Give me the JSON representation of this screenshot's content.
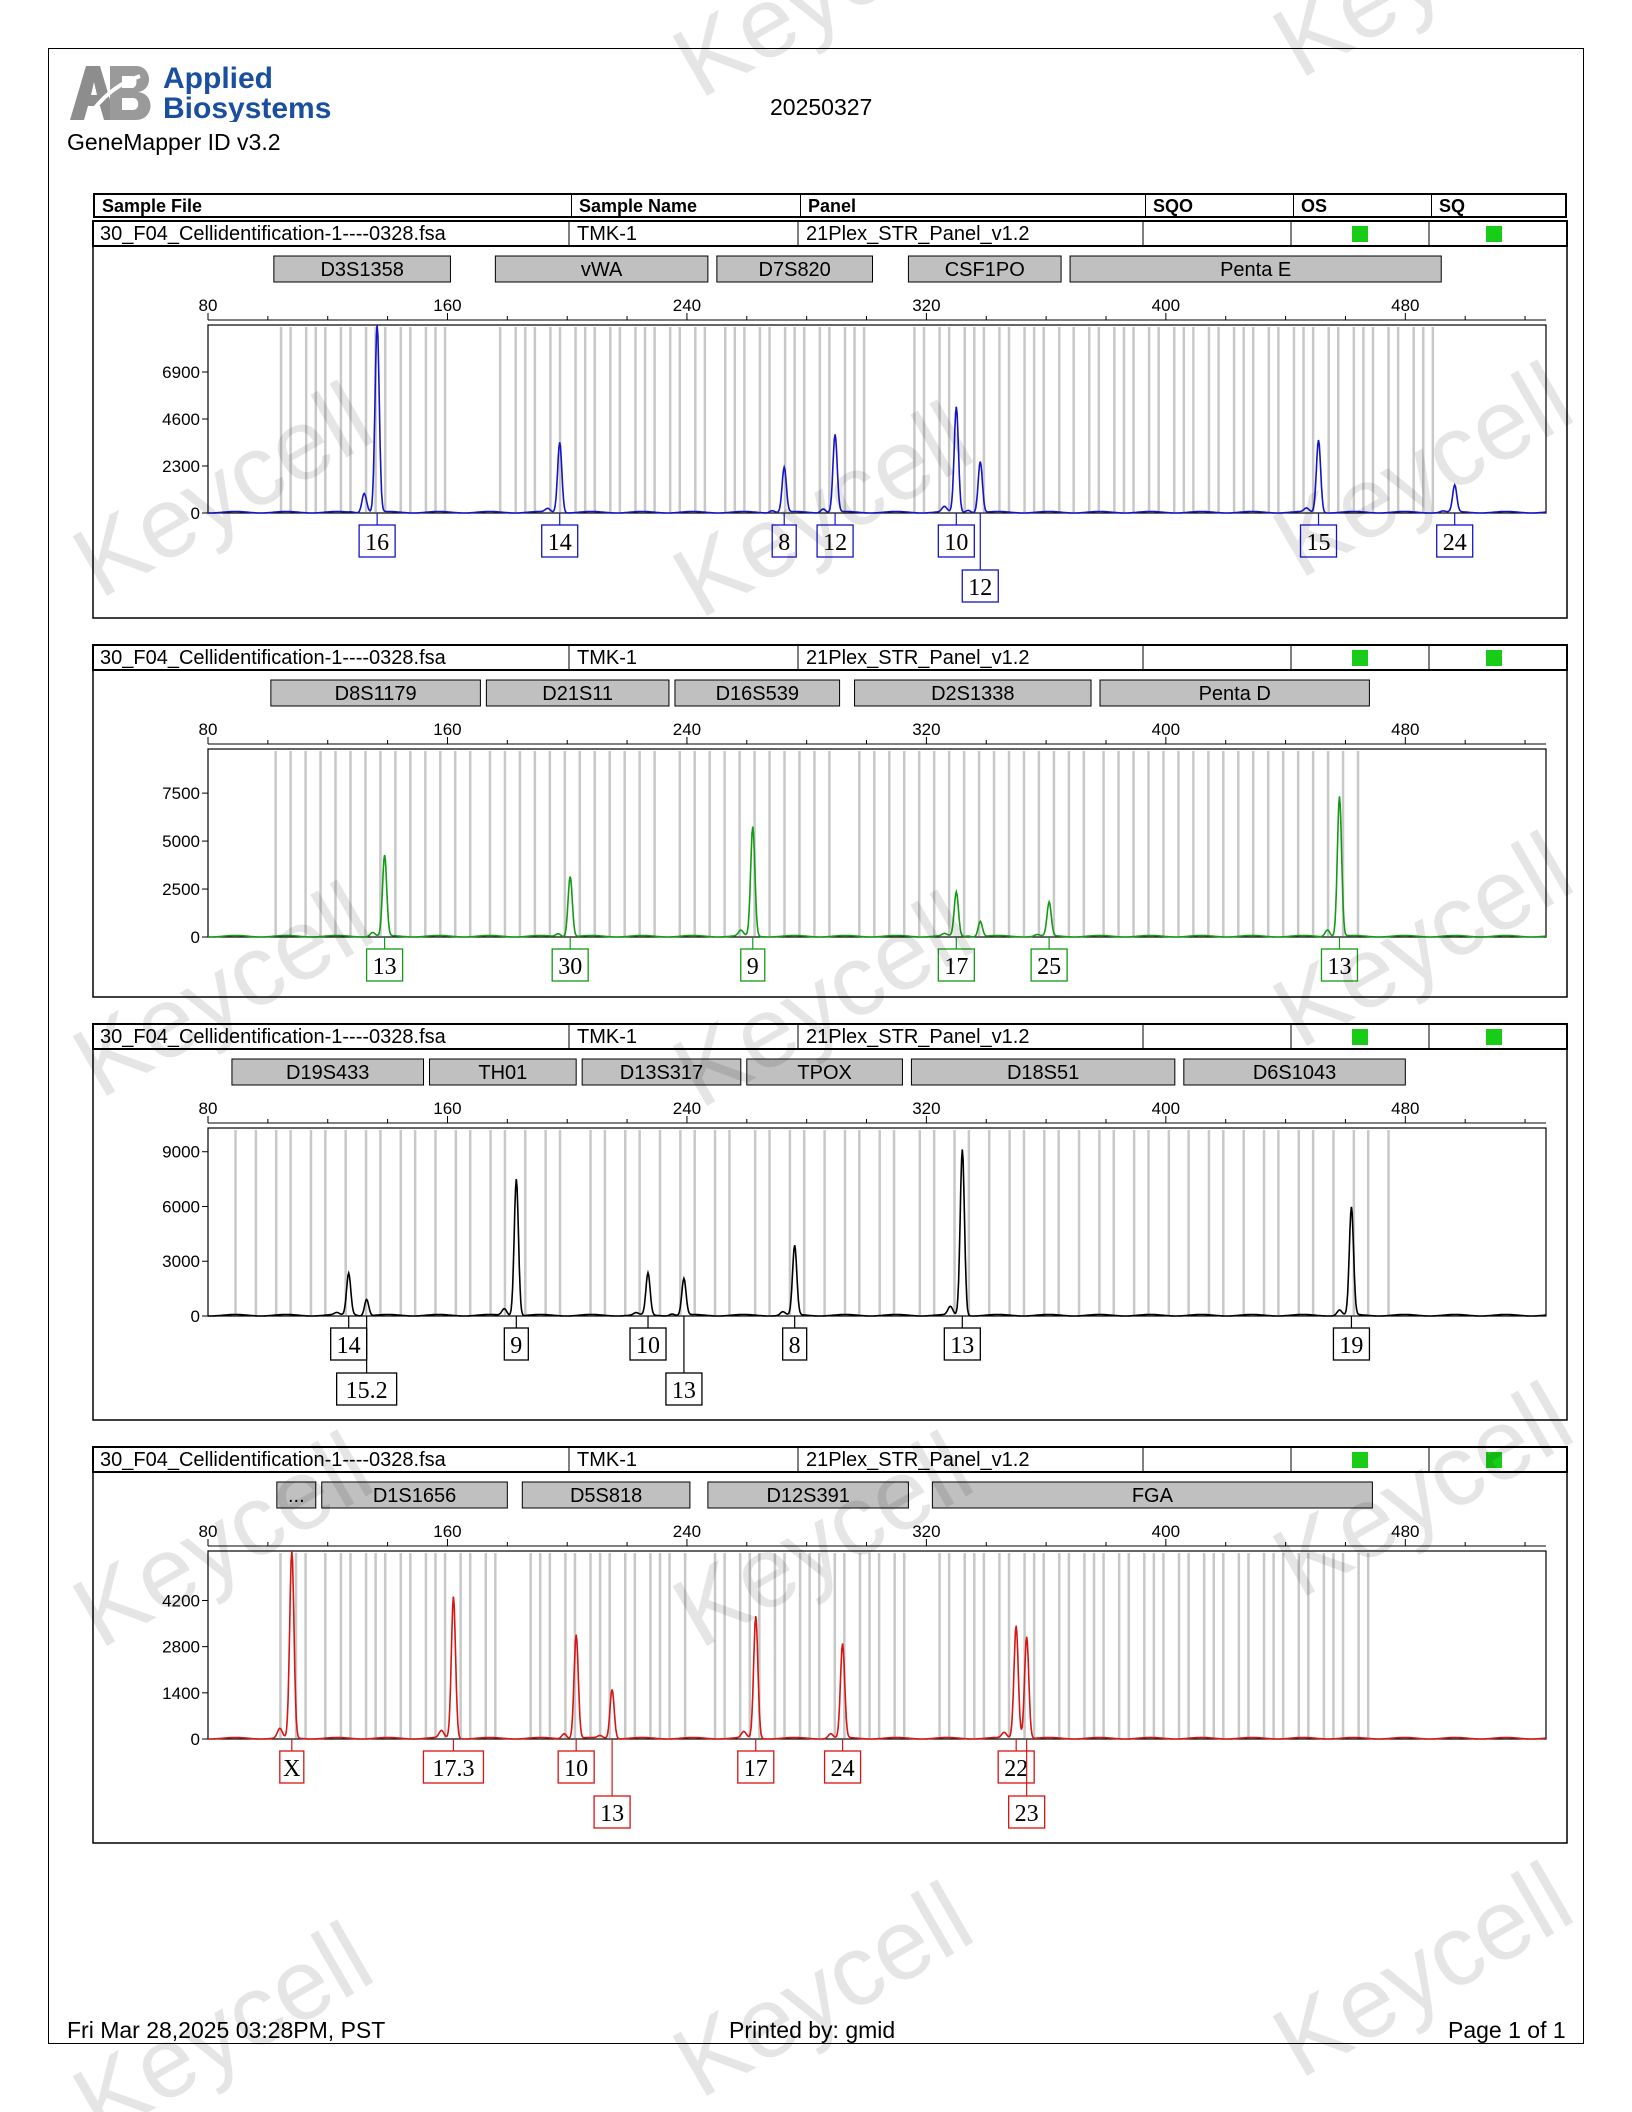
{
  "header": {
    "brand_line1": "Applied",
    "brand_line2": "Biosystems",
    "software": "GeneMapper ID v3.2",
    "report_date": "20250327"
  },
  "columns": [
    "Sample File",
    "Sample Name",
    "Panel",
    "SQO",
    "OS",
    "SQ"
  ],
  "sample": {
    "file": "30_F04_Cellidentification-1----0328.fsa",
    "name": "TMK-1",
    "panel": "21Plex_STR_Panel_v1.2"
  },
  "colors": {
    "blue": "#1515c8",
    "green": "#139b13",
    "black": "#000000",
    "red": "#d81414",
    "quality_ok": "#18cc18",
    "marker_box": "#c0c0c0",
    "bin_line": "#c8c8c8"
  },
  "watermark_text": "Keycell",
  "footer": {
    "datetime": "Fri Mar 28,2025 03:28PM, PST",
    "printed_by": "Printed by: gmid",
    "page": "Page 1 of 1"
  },
  "chart_data": [
    {
      "type": "line",
      "dye": "blue",
      "x_ticks": [
        80,
        160,
        240,
        320,
        400,
        480
      ],
      "xlim": [
        80,
        527
      ],
      "y_ticks": [
        0,
        2300,
        4600,
        6900
      ],
      "ylim": [
        0,
        9200
      ],
      "markers": [
        {
          "name": "D3S1358",
          "range": [
            102,
            161
          ]
        },
        {
          "name": "vWA",
          "range": [
            176,
            247
          ]
        },
        {
          "name": "D7S820",
          "range": [
            250,
            302
          ]
        },
        {
          "name": "CSF1PO",
          "range": [
            314,
            365
          ]
        },
        {
          "name": "Penta E",
          "range": [
            368,
            492
          ]
        }
      ],
      "peaks": [
        {
          "size": 132,
          "height": 550,
          "allele": ""
        },
        {
          "size": 136.5,
          "height": 9200,
          "allele": "16"
        },
        {
          "size": 197.5,
          "height": 3450,
          "allele": "14"
        },
        {
          "size": 272.5,
          "height": 2200,
          "allele": "8"
        },
        {
          "size": 289.5,
          "height": 3800,
          "allele": "12"
        },
        {
          "size": 330,
          "height": 5150,
          "allele": "10"
        },
        {
          "size": 338,
          "height": 2500,
          "allele": "12"
        },
        {
          "size": 451,
          "height": 3550,
          "allele": "15"
        },
        {
          "size": 496.5,
          "height": 1300,
          "allele": "24"
        }
      ]
    },
    {
      "type": "line",
      "dye": "green",
      "x_ticks": [
        80,
        160,
        240,
        320,
        400,
        480
      ],
      "xlim": [
        80,
        527
      ],
      "y_ticks": [
        0,
        2500,
        5000,
        7500
      ],
      "ylim": [
        0,
        9800
      ],
      "markers": [
        {
          "name": "D8S1179",
          "range": [
            101,
            171
          ]
        },
        {
          "name": "D21S11",
          "range": [
            173,
            234
          ]
        },
        {
          "name": "D16S539",
          "range": [
            236,
            291
          ]
        },
        {
          "name": "D2S1338",
          "range": [
            296,
            375
          ]
        },
        {
          "name": "Penta D",
          "range": [
            378,
            468
          ]
        }
      ],
      "peaks": [
        {
          "size": 139,
          "height": 4200,
          "allele": "13"
        },
        {
          "size": 201,
          "height": 3150,
          "allele": "30"
        },
        {
          "size": 262,
          "height": 5700,
          "allele": "9"
        },
        {
          "size": 330,
          "height": 2300,
          "allele": "17"
        },
        {
          "size": 338,
          "height": 800,
          "allele": ""
        },
        {
          "size": 361,
          "height": 1750,
          "allele": "25"
        },
        {
          "size": 458,
          "height": 7300,
          "allele": "13"
        }
      ]
    },
    {
      "type": "line",
      "dye": "black",
      "x_ticks": [
        80,
        160,
        240,
        320,
        400,
        480
      ],
      "xlim": [
        80,
        527
      ],
      "y_ticks": [
        0,
        3000,
        6000,
        9000
      ],
      "ylim": [
        0,
        10300
      ],
      "markers": [
        {
          "name": "D19S433",
          "range": [
            88,
            152
          ]
        },
        {
          "name": "TH01",
          "range": [
            154,
            203
          ]
        },
        {
          "name": "D13S317",
          "range": [
            205,
            258
          ]
        },
        {
          "name": "TPOX",
          "range": [
            260,
            312
          ]
        },
        {
          "name": "D18S51",
          "range": [
            315,
            403
          ]
        },
        {
          "name": "D6S1043",
          "range": [
            406,
            480
          ]
        }
      ],
      "peaks": [
        {
          "size": 127,
          "height": 2300,
          "allele": "14"
        },
        {
          "size": 133,
          "height": 900,
          "allele": "15.2"
        },
        {
          "size": 183,
          "height": 7500,
          "allele": "9"
        },
        {
          "size": 227,
          "height": 2300,
          "allele": "10"
        },
        {
          "size": 239,
          "height": 2000,
          "allele": "13"
        },
        {
          "size": 276,
          "height": 3800,
          "allele": "8"
        },
        {
          "size": 332,
          "height": 9100,
          "allele": "13"
        },
        {
          "size": 462,
          "height": 5900,
          "allele": "19"
        }
      ]
    },
    {
      "type": "line",
      "dye": "red",
      "x_ticks": [
        80,
        160,
        240,
        320,
        400,
        480
      ],
      "xlim": [
        80,
        527
      ],
      "y_ticks": [
        0,
        1400,
        2800,
        4200
      ],
      "ylim": [
        0,
        5700
      ],
      "markers": [
        {
          "name": "...",
          "range": [
            103,
            116
          ]
        },
        {
          "name": "D1S1656",
          "range": [
            118,
            180
          ]
        },
        {
          "name": "D5S818",
          "range": [
            185,
            241
          ]
        },
        {
          "name": "D12S391",
          "range": [
            247,
            314
          ]
        },
        {
          "name": "FGA",
          "range": [
            322,
            469
          ]
        }
      ],
      "peaks": [
        {
          "size": 108,
          "height": 5700,
          "allele": "X"
        },
        {
          "size": 162,
          "height": 4300,
          "allele": "17.3"
        },
        {
          "size": 203,
          "height": 3150,
          "allele": "10"
        },
        {
          "size": 215,
          "height": 1500,
          "allele": "13"
        },
        {
          "size": 263,
          "height": 3700,
          "allele": "17"
        },
        {
          "size": 292,
          "height": 2850,
          "allele": "24"
        },
        {
          "size": 350,
          "height": 3300,
          "allele": "22"
        },
        {
          "size": 353.5,
          "height": 3100,
          "allele": "23"
        }
      ]
    }
  ]
}
